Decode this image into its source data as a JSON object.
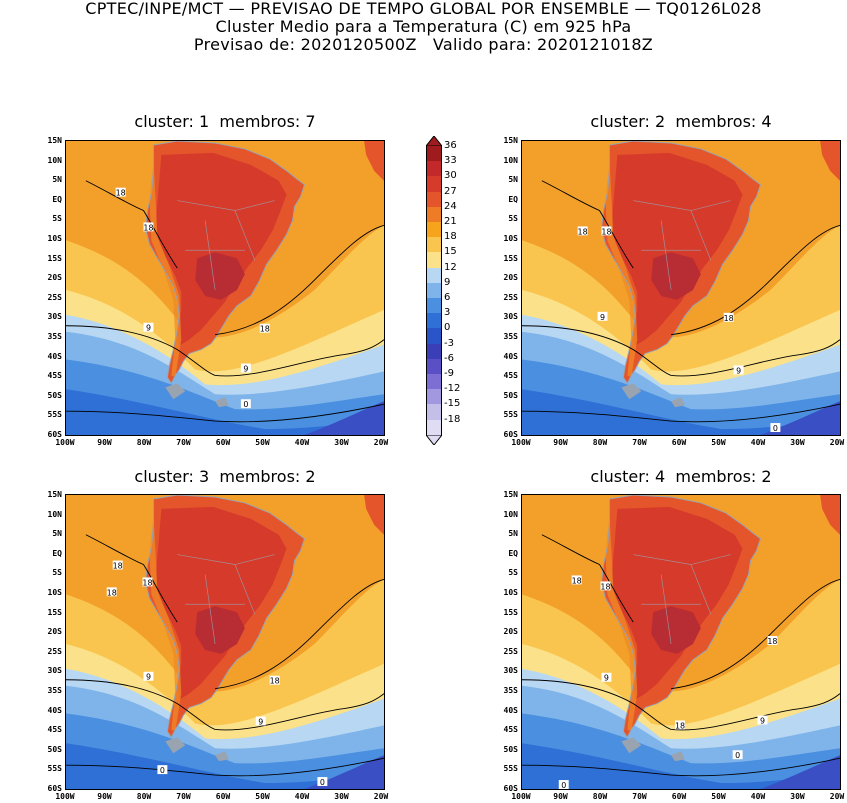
{
  "header": {
    "line1": "CPTEC/INPE/MCT — PREVISAO DE TEMPO GLOBAL POR ENSEMBLE — TQ0126L028",
    "line2": "Cluster Medio para a Temperatura (C) em 925 hPa",
    "line3": "Previsao de: 2020120500Z   Valido para: 2020121018Z"
  },
  "panels": [
    {
      "title": "cluster: 1  membros: 7",
      "contour_labels": [
        "18",
        "18",
        "9",
        "18",
        "9",
        "0"
      ]
    },
    {
      "title": "cluster: 2  membros: 4",
      "contour_labels": [
        "18",
        "18",
        "9",
        "18",
        "9",
        "0"
      ]
    },
    {
      "title": "cluster: 3  membros: 2",
      "contour_labels": [
        "18",
        "18",
        "18",
        "9",
        "18",
        "9",
        "0",
        "0"
      ]
    },
    {
      "title": "cluster: 4  membros: 2",
      "contour_labels": [
        "18",
        "18",
        "9",
        "18",
        "18",
        "9",
        "0",
        "0"
      ]
    }
  ],
  "lat_ticks": [
    "15N",
    "10N",
    "5N",
    "EQ",
    "5S",
    "10S",
    "15S",
    "20S",
    "25S",
    "30S",
    "35S",
    "40S",
    "45S",
    "50S",
    "55S",
    "60S"
  ],
  "lon_ticks": [
    "100W",
    "90W",
    "80W",
    "70W",
    "60W",
    "50W",
    "40W",
    "30W",
    "20W"
  ],
  "colorbar": {
    "labels": [
      "36",
      "33",
      "30",
      "27",
      "24",
      "21",
      "18",
      "15",
      "12",
      "9",
      "6",
      "3",
      "0",
      "-3",
      "-6",
      "-9",
      "-12",
      "-15",
      "-18"
    ],
    "colors": [
      "#a01b1e",
      "#c3282a",
      "#d63a2a",
      "#e5552b",
      "#ee7b26",
      "#f7a41d",
      "#f9c54e",
      "#fbe28a",
      "#b7d7f2",
      "#7eb4ea",
      "#4a8fe0",
      "#2e70d6",
      "#2a55c8",
      "#3a3fb8",
      "#5a4fc4",
      "#7c6ed2",
      "#a198df",
      "#c4bfe9",
      "#e0dcf4"
    ]
  },
  "colors": {
    "ocean_warm": "#f2a02a",
    "ocean_mid": "#f9c54e",
    "ocean_light": "#fbe28a",
    "cool1": "#b7d7f2",
    "cool2": "#7eb4ea",
    "cool3": "#4a8fe0",
    "cool4": "#2e70d6",
    "deep": "#3a4fc4",
    "land_hot": "#d63a2a",
    "land_very_hot": "#b82d33",
    "land_warm": "#e5552b",
    "andes": "#f08a27",
    "topo_gray": "#9aa3b0"
  }
}
